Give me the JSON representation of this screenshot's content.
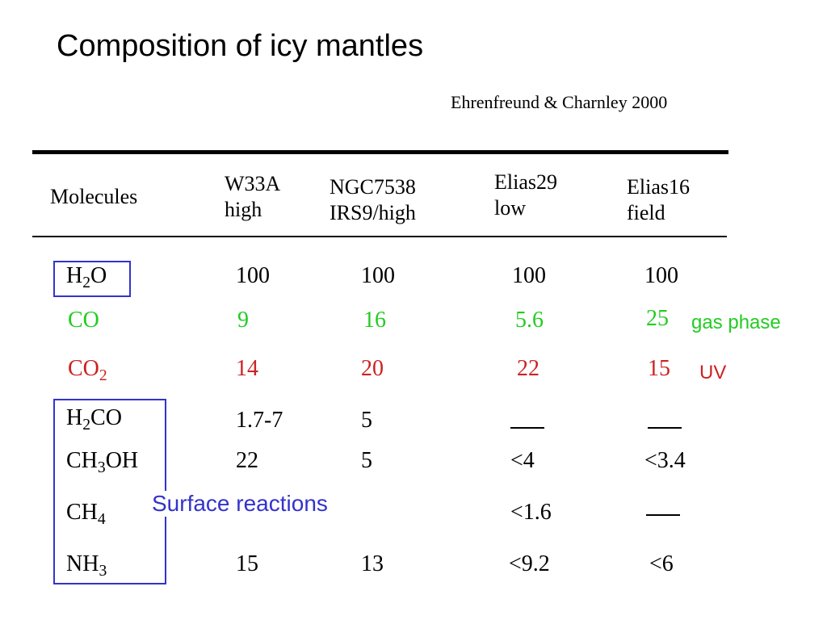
{
  "title": "Composition of icy mantles",
  "citation": "Ehrenfreund & Charnley 2000",
  "colors": {
    "co": "#22cc22",
    "co2": "#cc2222",
    "box": "#3333cc",
    "text": "#000000"
  },
  "headers": {
    "molecules": "Molecules",
    "c1_line1": "W33A",
    "c1_line2": "high",
    "c2_line1": "NGC7538",
    "c2_line2": "IRS9/high",
    "c3_line1": "Elias29",
    "c3_line2": "low",
    "c4_line1": "Elias16",
    "c4_line2": "field"
  },
  "rows": {
    "h2o": {
      "m1": "H",
      "m2": "2",
      "m3": "O",
      "v1": "100",
      "v2": "100",
      "v3": "100",
      "v4": "100"
    },
    "co": {
      "m1": "CO",
      "v1": "9",
      "v2": "16",
      "v3": "5.6",
      "v4": "25"
    },
    "co2": {
      "m1": "CO",
      "m2": "2",
      "v1": "14",
      "v2": "20",
      "v3": "22",
      "v4": "15"
    },
    "h2co": {
      "m1": "H",
      "m2": "2",
      "m3": "CO",
      "v1": "1.7-7",
      "v2": "5",
      "v3": "—",
      "v4": "—"
    },
    "ch3oh": {
      "m1": "CH",
      "m2": "3",
      "m3": "OH",
      "v1": "22",
      "v2": "5",
      "v3": "<4",
      "v4": "<3.4"
    },
    "ch4": {
      "m1": "CH",
      "m2": "4",
      "v3": "<1.6",
      "v4": "—"
    },
    "nh3": {
      "m1": "NH",
      "m2": "3",
      "v1": "15",
      "v2": "13",
      "v3": "<9.2",
      "v4": "<6"
    }
  },
  "notes": {
    "gas_phase": "gas phase",
    "uv": "UV",
    "surface_reactions": "Surface reactions"
  }
}
